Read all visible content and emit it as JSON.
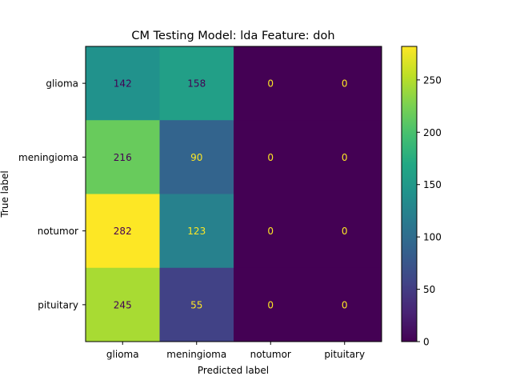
{
  "chart_data": {
    "type": "heatmap",
    "title": "CM Testing Model: lda Feature: doh",
    "xlabel": "Predicted label",
    "ylabel": "True label",
    "x_categories": [
      "glioma",
      "meningioma",
      "notumor",
      "pituitary"
    ],
    "y_categories": [
      "glioma",
      "meningioma",
      "notumor",
      "pituitary"
    ],
    "values": [
      [
        142,
        158,
        0,
        0
      ],
      [
        216,
        90,
        0,
        0
      ],
      [
        282,
        123,
        0,
        0
      ],
      [
        245,
        55,
        0,
        0
      ]
    ],
    "colormap": "viridis",
    "color_range": [
      0,
      282
    ],
    "colorbar_ticks": [
      0,
      50,
      100,
      150,
      200,
      250
    ],
    "text_colors": {
      "dark": "#440154",
      "light": "#fde725"
    },
    "grid": false
  }
}
